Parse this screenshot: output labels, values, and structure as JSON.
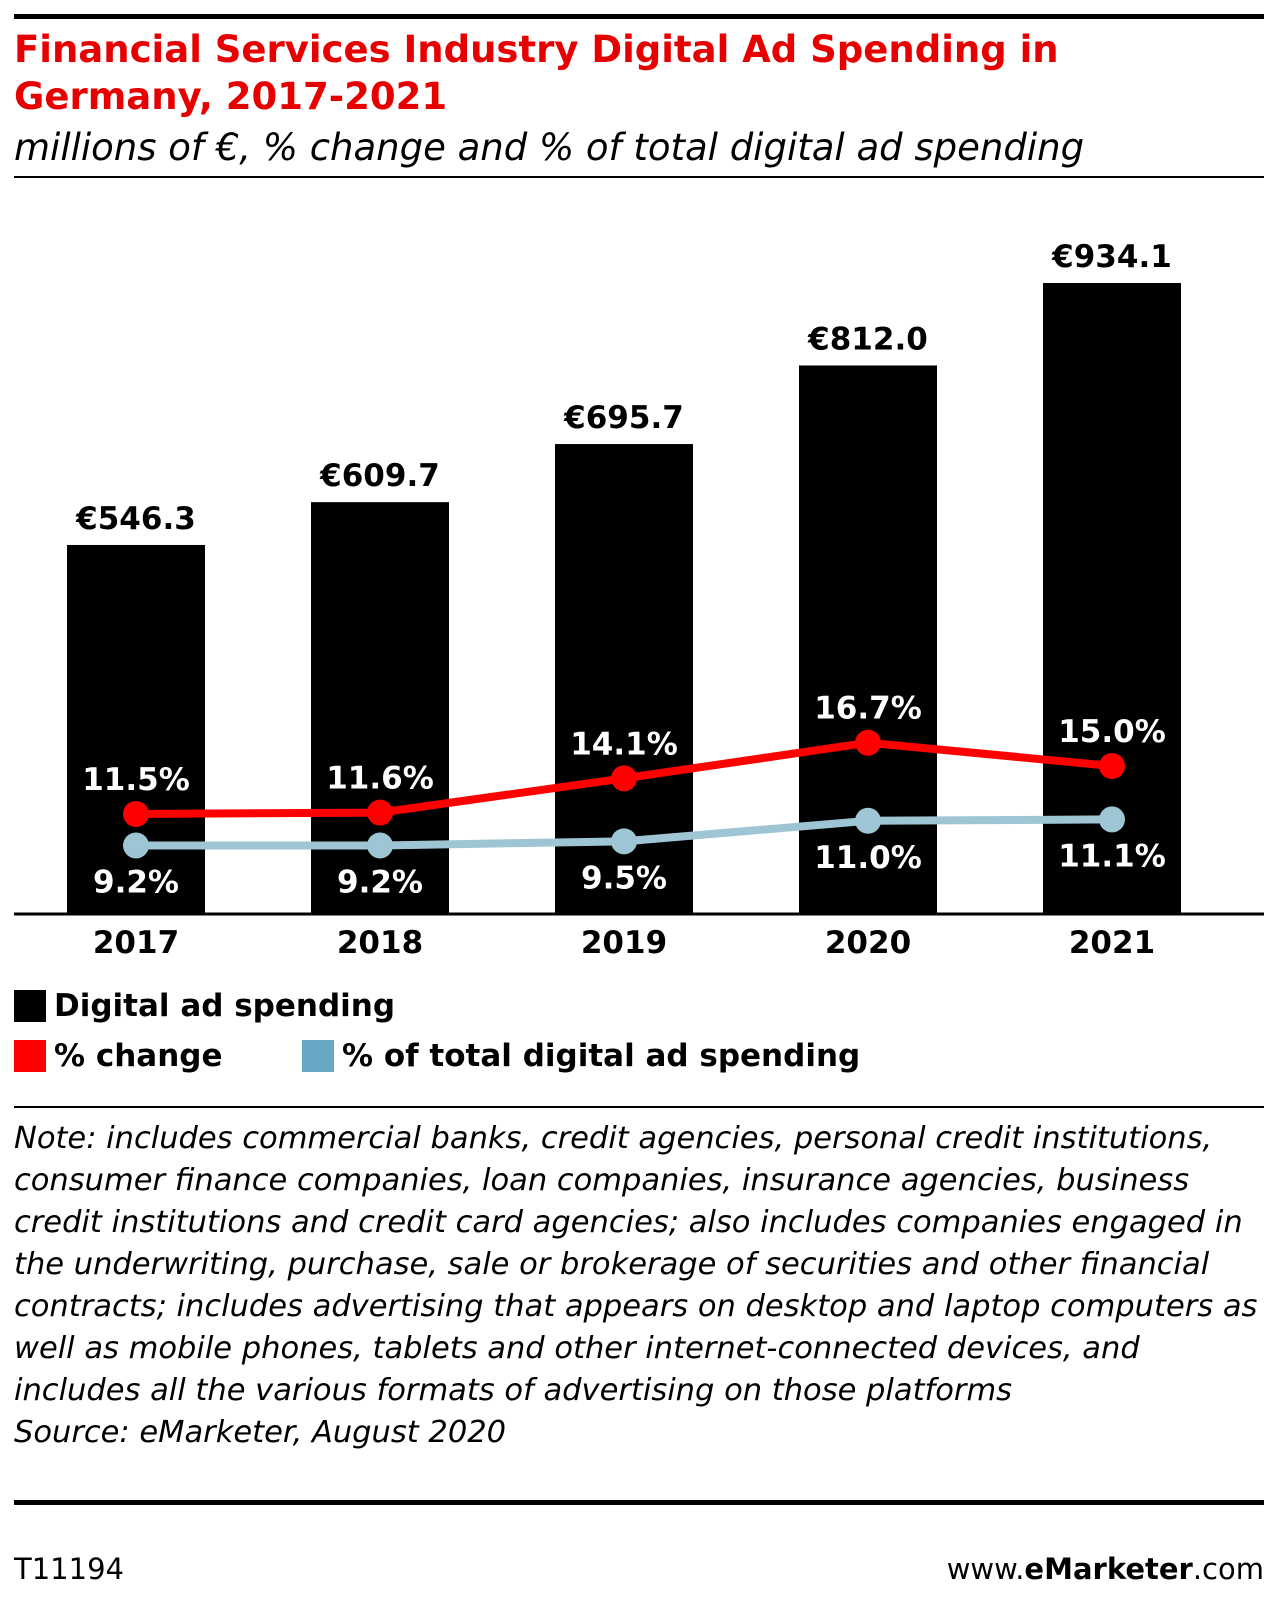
{
  "header": {
    "title": "Financial Services Industry Digital Ad Spending in Germany, 2017-2021",
    "subtitle": "millions of €, % change and % of total digital ad spending"
  },
  "chart_data": {
    "type": "bar",
    "title": "Financial Services Industry Digital Ad Spending in Germany, 2017-2021",
    "subtitle": "millions of €, % change and % of total digital ad spending",
    "categories": [
      "2017",
      "2018",
      "2019",
      "2020",
      "2021"
    ],
    "series": [
      {
        "name": "Digital ad spending",
        "kind": "bar",
        "color": "#000000",
        "values": [
          546.3,
          609.7,
          695.7,
          812.0,
          934.1
        ],
        "labels": [
          "€546.3",
          "€609.7",
          "€695.7",
          "€812.0",
          "€934.1"
        ]
      },
      {
        "name": "% change",
        "kind": "line",
        "color": "#ff0000",
        "values": [
          11.5,
          11.6,
          14.1,
          16.7,
          15.0
        ],
        "labels": [
          "11.5%",
          "11.6%",
          "14.1%",
          "16.7%",
          "15.0%"
        ]
      },
      {
        "name": "% of total digital ad spending",
        "kind": "line",
        "color": "#9ec5d3",
        "values": [
          9.2,
          9.2,
          9.5,
          11.0,
          11.1
        ],
        "labels": [
          "9.2%",
          "9.2%",
          "9.5%",
          "11.0%",
          "11.1%"
        ]
      }
    ],
    "legend_position": "bottom-left",
    "grid": false
  },
  "legend": {
    "items": [
      {
        "label": "Digital ad spending",
        "color": "#000000"
      },
      {
        "label": "% change",
        "color": "#ff0000"
      },
      {
        "label": "% of total digital ad spending",
        "color": "#6aa7c4"
      }
    ]
  },
  "note": "Note: includes commercial banks, credit agencies, personal credit institutions, consumer finance companies, loan companies, insurance agencies, business credit institutions and credit card agencies; also includes companies engaged in the underwriting, purchase, sale or brokerage of securities and other financial contracts; includes advertising that appears on desktop and laptop computers as well as mobile phones, tablets and other internet-connected devices, and includes all the various formats of advertising on those platforms",
  "source": "Source: eMarketer, August 2020",
  "footer": {
    "chart_id": "T11194",
    "site_prefix": "www.",
    "site_brand": "eMarketer",
    "site_suffix": ".com"
  }
}
